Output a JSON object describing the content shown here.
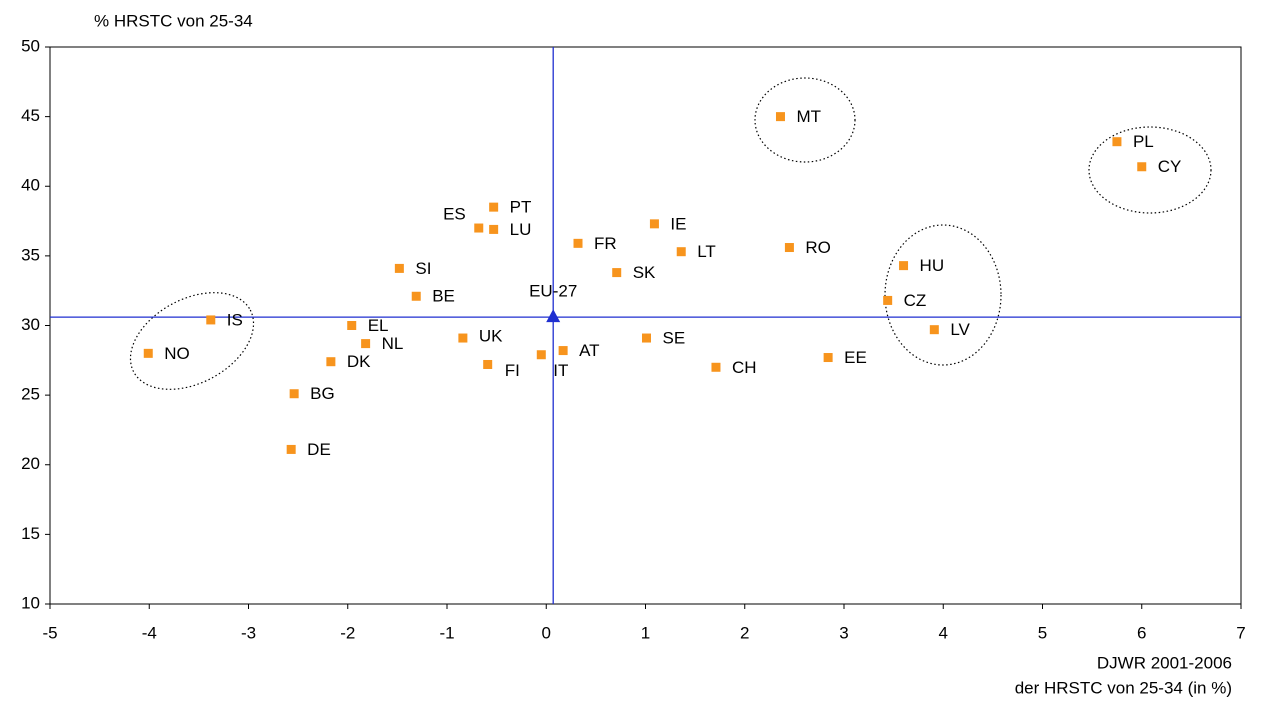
{
  "chart_data": {
    "type": "scatter",
    "y_axis_label": "% HRSTC von 25-34",
    "x_axis_label": [
      "DJWR 2001-2006",
      "der HRSTC von 25-34 (in %)"
    ],
    "point_labels": [
      "NO",
      "IS",
      "DE",
      "BG",
      "DK",
      "NL",
      "EL",
      "BE",
      "SI",
      "ES",
      "PT",
      "LU",
      "UK",
      "FI",
      "IT",
      "AT",
      "FR",
      "SK",
      "IE",
      "LT",
      "SE",
      "CH",
      "MT",
      "RO",
      "EE",
      "CZ",
      "HU",
      "LV",
      "PL",
      "CY"
    ],
    "x": [
      -4.01,
      -3.38,
      -2.57,
      -2.54,
      -2.17,
      -1.82,
      -1.96,
      -1.31,
      -1.48,
      -0.68,
      -0.53,
      -0.53,
      -0.84,
      -0.59,
      -0.05,
      0.17,
      0.32,
      0.71,
      1.09,
      1.36,
      1.01,
      1.71,
      2.36,
      2.45,
      2.84,
      3.44,
      3.6,
      3.91,
      5.75,
      6.0
    ],
    "values": [
      28.0,
      30.4,
      21.1,
      25.1,
      27.4,
      28.7,
      30.0,
      32.1,
      34.1,
      37.0,
      38.5,
      36.9,
      29.1,
      27.2,
      27.9,
      28.2,
      35.9,
      33.8,
      37.3,
      35.3,
      29.1,
      27.0,
      45.0,
      35.6,
      27.7,
      31.8,
      34.3,
      29.7,
      43.2,
      41.4
    ],
    "color": "#f7941d",
    "reference": {
      "label": "EU-27",
      "x": 0.07,
      "y": 30.6,
      "color": "#1f2fd0"
    },
    "xlim": [
      -5,
      7
    ],
    "xticks": [
      -5,
      -4,
      -3,
      -2,
      -1,
      0,
      1,
      2,
      3,
      4,
      5,
      6,
      7
    ],
    "ylim": [
      10,
      50
    ],
    "yticks": [
      10,
      15,
      20,
      25,
      30,
      35,
      40,
      45,
      50
    ],
    "grid": false
  }
}
